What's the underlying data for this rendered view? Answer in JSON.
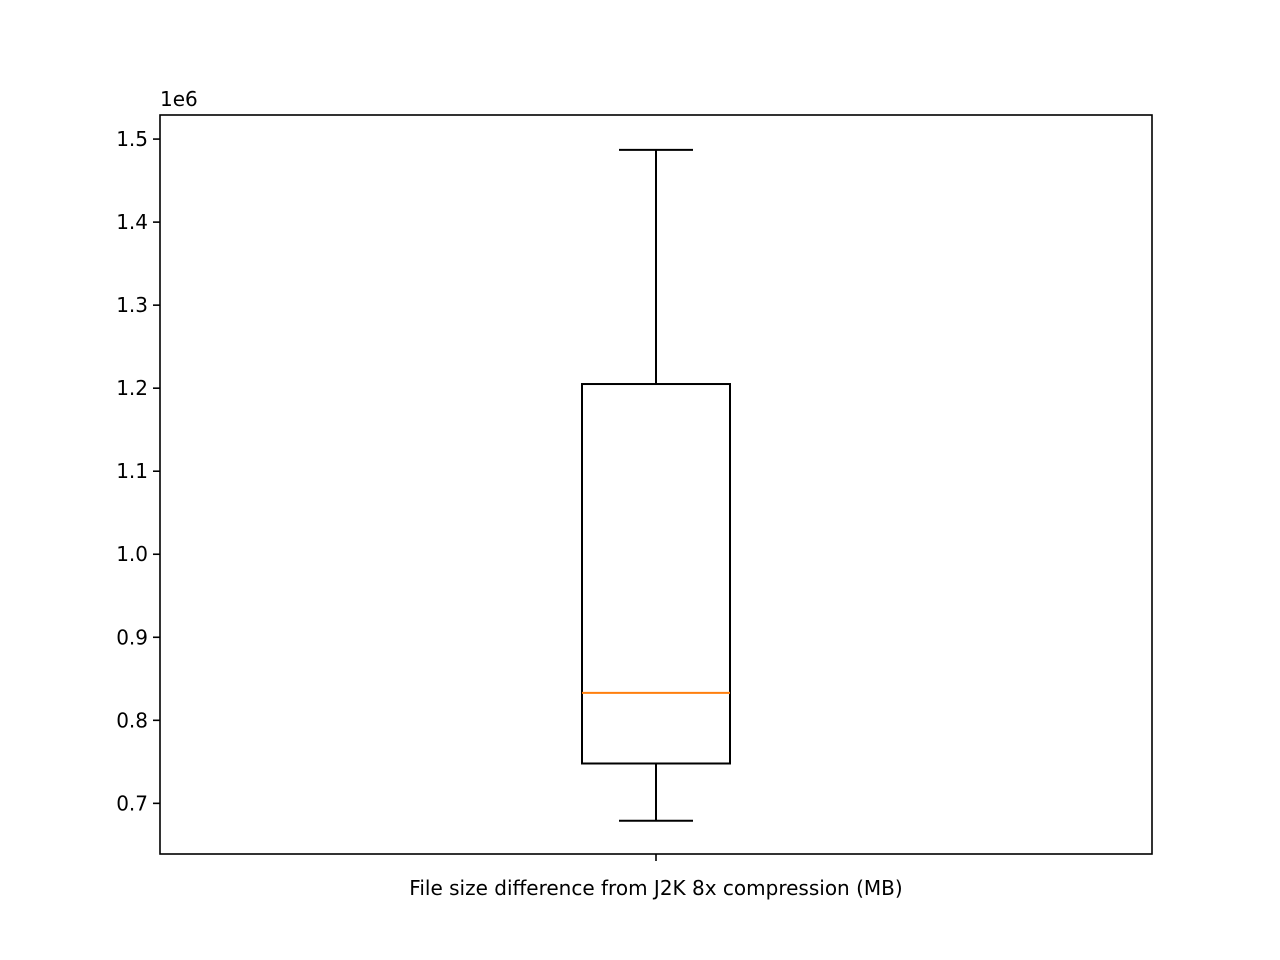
{
  "chart_data": {
    "type": "box",
    "title": "",
    "xlabel": "",
    "ylabel": "",
    "offset_label": "1e6",
    "categories": [
      "File size difference from J2K 8x compression (MB)"
    ],
    "boxes": [
      {
        "label": "File size difference from J2K 8x compression (MB)",
        "whisker_low": 0.679,
        "q1": 0.748,
        "median": 0.833,
        "q3": 1.205,
        "whisker_high": 1.487
      }
    ],
    "ylim": [
      0.639,
      1.529
    ],
    "yticks": [
      0.7,
      0.8,
      0.9,
      1.0,
      1.1,
      1.2,
      1.3,
      1.4,
      1.5
    ],
    "ytick_labels": [
      "0.7",
      "0.8",
      "0.9",
      "1.0",
      "1.1",
      "1.2",
      "1.3",
      "1.4",
      "1.5"
    ],
    "grid": false,
    "colors": {
      "box": "#000000",
      "median": "#ff7f0e"
    }
  }
}
